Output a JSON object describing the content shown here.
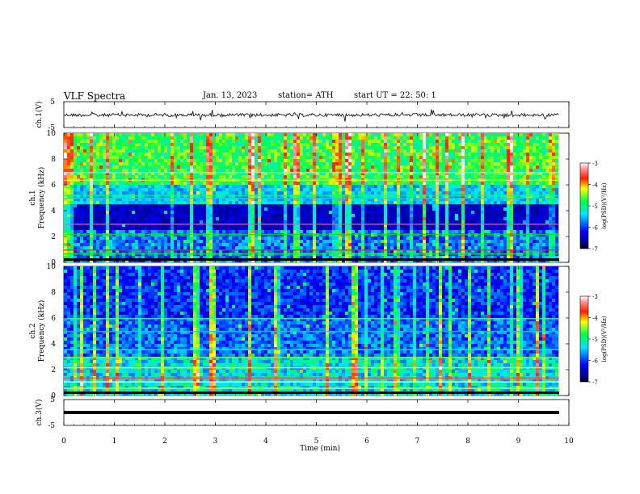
{
  "header": {
    "title": "VLF  Spectra",
    "date": "Jan. 13, 2023",
    "station": "station= ATH",
    "start": "start  UT  =    22: 50: 1"
  },
  "chart_data": [
    {
      "type": "line",
      "panel": "ch1-waveform",
      "ylabel": "ch.1(V)",
      "ylim": [
        -5,
        5
      ],
      "yticks": [
        "5",
        "-5"
      ],
      "x": [
        0,
        10
      ],
      "series_note_visible": false
    },
    {
      "type": "heatmap",
      "panel": "ch1-spectrogram",
      "ylabel": "ch.1\nFrequency (kHz)",
      "ylabel_top": "ch.1",
      "ylabel_bottom": "Frequency  (kHz)",
      "ylim": [
        0,
        10
      ],
      "yticks": [
        "0",
        "2",
        "4",
        "6",
        "8",
        "10"
      ],
      "colorbar": {
        "label": "log(PSD)(V²/Hz)",
        "ticks": [
          "-3",
          "-4",
          "-5",
          "-6",
          "-7"
        ],
        "range": [
          -7,
          -3
        ]
      }
    },
    {
      "type": "heatmap",
      "panel": "ch2-spectrogram",
      "ylabel_top": "ch.2",
      "ylabel_bottom": "Frequency  (kHz)",
      "ylim": [
        0,
        10
      ],
      "yticks": [
        "0",
        "2",
        "4",
        "6",
        "8",
        "10"
      ],
      "colorbar": {
        "label": "log(PSD)(V²/Hz)",
        "ticks": [
          "-3",
          "-4",
          "-5",
          "-6",
          "-7"
        ],
        "range": [
          -7,
          -3
        ]
      }
    },
    {
      "type": "line",
      "panel": "ch3-waveform",
      "ylabel": "ch.3(V)",
      "ylim": [
        -5,
        5
      ],
      "yticks": [
        "5",
        "-5"
      ],
      "x": [
        0,
        10
      ]
    }
  ],
  "xaxis": {
    "label": "Time  (min)",
    "ticks": [
      "0",
      "1",
      "2",
      "3",
      "4",
      "5",
      "6",
      "7",
      "8",
      "9",
      "10"
    ],
    "range": [
      0,
      10
    ]
  }
}
